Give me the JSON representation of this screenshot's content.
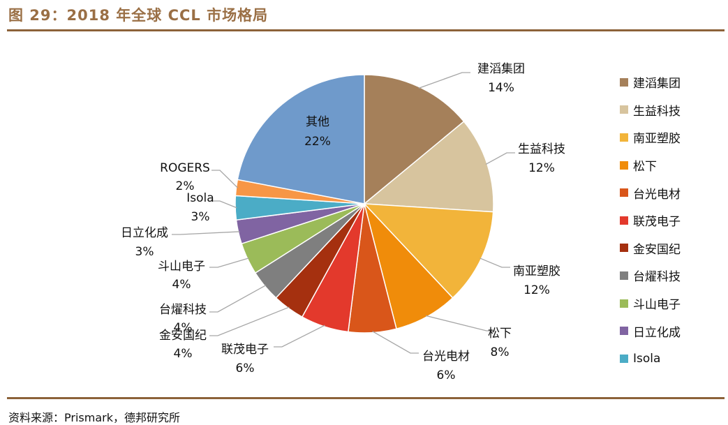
{
  "header": {
    "title": "图 29：2018 年全球 CCL 市场格局"
  },
  "footer": {
    "source": "资料来源：Prismark，德邦研究所"
  },
  "chart_data": {
    "type": "pie",
    "title": "2018 年全球 CCL 市场格局",
    "start_angle_deg": 0,
    "direction": "clockwise",
    "slices": [
      {
        "label": "建滔集团",
        "value": 14,
        "pct": "14%",
        "color": "#a5805a"
      },
      {
        "label": "生益科技",
        "value": 12,
        "pct": "12%",
        "color": "#d7c49e"
      },
      {
        "label": "南亚塑胶",
        "value": 12,
        "pct": "12%",
        "color": "#f2b43a"
      },
      {
        "label": "松下",
        "value": 8,
        "pct": "8%",
        "color": "#f08c0a"
      },
      {
        "label": "台光电材",
        "value": 6,
        "pct": "6%",
        "color": "#d9561a"
      },
      {
        "label": "联茂电子",
        "value": 6,
        "pct": "6%",
        "color": "#e3392c"
      },
      {
        "label": "金安国纪",
        "value": 4,
        "pct": "4%",
        "color": "#a5300f"
      },
      {
        "label": "台燿科技",
        "value": 4,
        "pct": "4%",
        "color": "#7f7f7f"
      },
      {
        "label": "斗山电子",
        "value": 4,
        "pct": "4%",
        "color": "#9bbb59"
      },
      {
        "label": "日立化成",
        "value": 3,
        "pct": "3%",
        "color": "#8064a2"
      },
      {
        "label": "Isola",
        "value": 3,
        "pct": "3%",
        "color": "#4bacc6"
      },
      {
        "label": "ROGERS",
        "value": 2,
        "pct": "2%",
        "color": "#f79646"
      },
      {
        "label": "其他",
        "value": 22,
        "pct": "22%",
        "color": "#6f9acb"
      }
    ],
    "legend": [
      "建滔集团",
      "生益科技",
      "南亚塑胶",
      "松下",
      "台光电材",
      "联茂电子",
      "金安国纪",
      "台燿科技",
      "斗山电子",
      "日立化成",
      "Isola"
    ],
    "legend_position": "right"
  }
}
